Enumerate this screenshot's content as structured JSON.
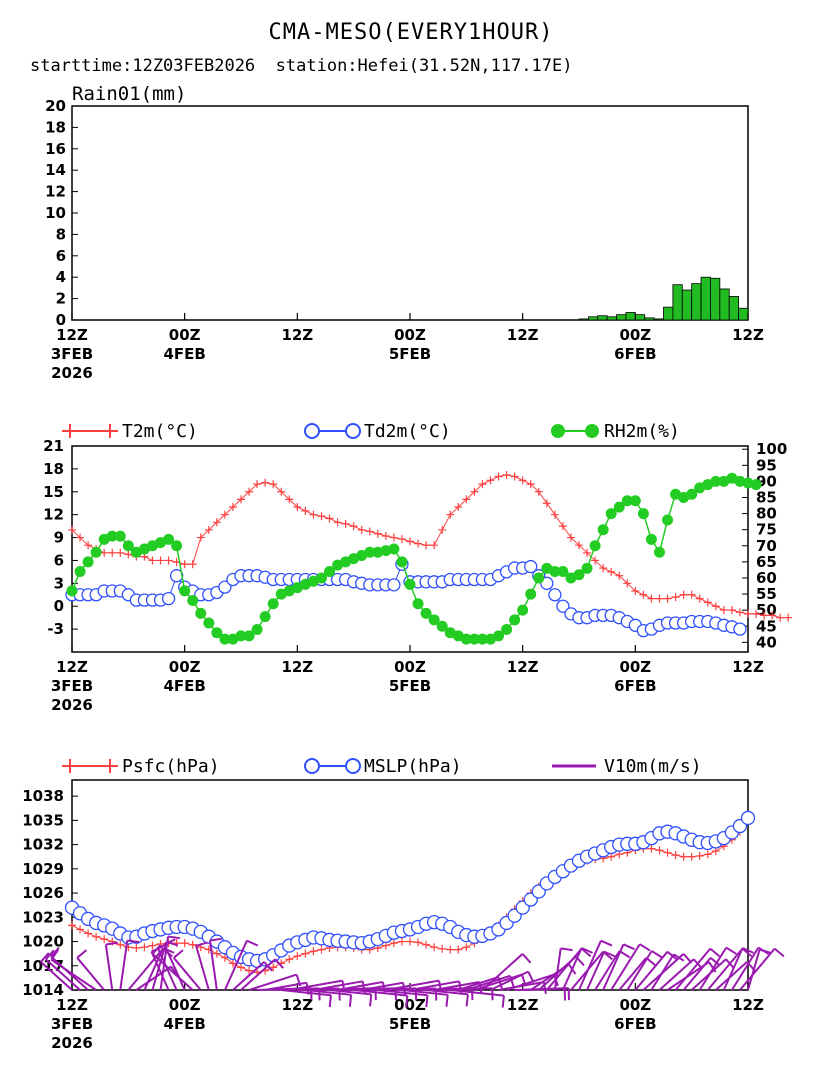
{
  "title": "CMA-MESO(EVERY1HOUR)",
  "subtitle_start": "starttime:12Z03FEB2026",
  "subtitle_station": "station:Hefei(31.52N,117.17E)",
  "colors": {
    "t2m": "#ff4040",
    "td2m": "#3050ff",
    "rh2m": "#22cc22",
    "psfc": "#ff4040",
    "mslp": "#3050ff",
    "wind": "#9a1ab0",
    "rain": "#22bb22"
  },
  "chart_data": [
    {
      "type": "bar",
      "title": "Rain01(mm)",
      "ylim": [
        0,
        20
      ],
      "yticks": [
        "20",
        "18",
        "16",
        "14",
        "12",
        "10",
        "8",
        "6",
        "4",
        "2",
        "0"
      ],
      "xlim": [
        0,
        72
      ],
      "xticks": [
        {
          "top": "12Z",
          "mid": "3FEB",
          "bot": "2026"
        },
        {
          "top": "00Z",
          "mid": "4FEB",
          "bot": ""
        },
        {
          "top": "12Z",
          "mid": "",
          "bot": ""
        },
        {
          "top": "00Z",
          "mid": "5FEB",
          "bot": ""
        },
        {
          "top": "12Z",
          "mid": "",
          "bot": ""
        },
        {
          "top": "00Z",
          "mid": "6FEB",
          "bot": ""
        },
        {
          "top": "12Z",
          "mid": "",
          "bot": ""
        }
      ],
      "x": [
        55,
        56,
        57,
        58,
        59,
        60,
        61,
        62,
        63,
        64,
        65,
        66,
        67,
        68,
        69,
        70,
        71,
        72
      ],
      "values": [
        0.1,
        0.3,
        0.4,
        0.3,
        0.5,
        0.7,
        0.5,
        0.2,
        0.1,
        1.2,
        3.3,
        2.8,
        3.4,
        4.0,
        3.9,
        2.9,
        2.2,
        1.1
      ]
    },
    {
      "type": "line",
      "legend": [
        "T2m(°C)",
        "Td2m(°C)",
        "RH2m(%)"
      ],
      "ylim_left": [
        -6,
        21
      ],
      "yticks_left": [
        "21",
        "18",
        "15",
        "12",
        "9",
        "6",
        "3",
        "0",
        "-3"
      ],
      "ylim_right": [
        37,
        101
      ],
      "yticks_right": [
        "100",
        "95",
        "90",
        "85",
        "80",
        "75",
        "70",
        "65",
        "60",
        "55",
        "50",
        "45",
        "40"
      ],
      "series": [
        {
          "name": "T2m",
          "values": [
            10,
            9,
            8,
            7.5,
            7,
            7,
            7,
            6.8,
            6.5,
            6.5,
            6,
            6,
            6,
            5.8,
            5.5,
            5.5,
            9,
            10,
            11,
            12,
            13,
            14,
            15,
            16,
            16.2,
            16,
            15,
            14,
            13,
            12.5,
            12,
            11.8,
            11.5,
            11,
            10.8,
            10.5,
            10,
            9.8,
            9.5,
            9.2,
            9,
            8.8,
            8.5,
            8.2,
            8,
            8,
            10,
            12,
            13,
            14,
            15,
            16,
            16.5,
            17,
            17.2,
            17,
            16.5,
            16,
            15,
            13.5,
            12,
            10.5,
            9,
            8,
            7,
            6,
            5,
            4.5,
            4,
            3,
            2,
            1.5,
            1,
            1,
            1,
            1.2,
            1.5,
            1.5,
            1,
            0.5,
            0,
            -0.5,
            -0.5,
            -0.8,
            -1,
            -1,
            -1.2,
            -1.2,
            -1.5,
            -1.5
          ]
        },
        {
          "name": "Td2m",
          "values": [
            1.5,
            1.5,
            1.5,
            1.5,
            2,
            2,
            2,
            1.5,
            0.8,
            0.8,
            0.8,
            0.8,
            1,
            4,
            2.5,
            2,
            1.5,
            1.5,
            1.8,
            2.5,
            3.5,
            4,
            4,
            4,
            3.8,
            3.5,
            3.5,
            3.5,
            3.5,
            3.5,
            3.5,
            3.5,
            3.5,
            3.5,
            3.5,
            3.2,
            3,
            2.8,
            2.8,
            2.8,
            2.8,
            5.5,
            3.2,
            3.2,
            3.2,
            3.2,
            3.2,
            3.5,
            3.5,
            3.5,
            3.5,
            3.5,
            3.5,
            4,
            4.5,
            5,
            5,
            5.2,
            4,
            3,
            1.5,
            0,
            -1,
            -1.5,
            -1.5,
            -1.2,
            -1.2,
            -1.2,
            -1.5,
            -2,
            -2.5,
            -3.2,
            -3,
            -2.5,
            -2.2,
            -2.2,
            -2.2,
            -2,
            -2,
            -2,
            -2.2,
            -2.5,
            -2.7,
            -3
          ]
        },
        {
          "name": "RH2m",
          "values": [
            56,
            62,
            65,
            68,
            72,
            73,
            73,
            70,
            68,
            69,
            70,
            71,
            72,
            70,
            56,
            53,
            49,
            46,
            43,
            41,
            41,
            42,
            42,
            44,
            48,
            52,
            55,
            56,
            57,
            58,
            59,
            60,
            62,
            64,
            65,
            66,
            67,
            68,
            68,
            68.5,
            69,
            65,
            58,
            52,
            49,
            47,
            45,
            43,
            42,
            41,
            41,
            41,
            41,
            42,
            44,
            47,
            50,
            55,
            60,
            63,
            62,
            62,
            60,
            61,
            63,
            70,
            75,
            80,
            82,
            84,
            84,
            80,
            72,
            68,
            78,
            86,
            85,
            86,
            88,
            89,
            90,
            90,
            91,
            90,
            89.5,
            89
          ]
        }
      ],
      "rh_x": [
        0,
        1,
        2,
        3,
        4,
        5,
        6,
        7,
        8,
        9,
        10,
        11,
        12,
        13,
        14,
        15,
        16,
        17,
        18,
        19,
        20,
        21,
        22,
        23,
        24,
        25,
        26,
        27,
        28,
        29,
        30,
        31,
        32,
        33,
        34,
        35,
        36,
        37,
        38,
        39,
        40,
        41,
        42,
        43,
        44,
        45,
        46,
        47,
        48,
        49,
        50,
        51,
        52,
        53,
        54,
        55,
        56,
        57,
        58,
        59,
        60,
        61,
        62,
        63,
        64,
        65,
        66,
        67,
        68,
        69,
        70,
        71,
        72,
        73,
        74,
        75,
        76,
        77,
        78,
        79,
        80,
        81,
        82,
        83,
        84,
        85
      ]
    },
    {
      "type": "line",
      "legend": [
        "Psfc(hPa)",
        "MSLP(hPa)",
        "V10m(m/s)"
      ],
      "ylim": [
        1014,
        1040
      ],
      "yticks": [
        "1038",
        "1035",
        "1032",
        "1029",
        "1026",
        "1023",
        "1020",
        "1017",
        "1014"
      ],
      "series": [
        {
          "name": "Psfc",
          "values": [
            1022,
            1021.5,
            1021,
            1020.6,
            1020.3,
            1020,
            1019.6,
            1019.3,
            1019.2,
            1019.3,
            1019.5,
            1019.7,
            1019.8,
            1019.8,
            1019.8,
            1019.6,
            1019.3,
            1019,
            1018.5,
            1018,
            1017.3,
            1016.8,
            1016.4,
            1016.2,
            1016.4,
            1016.8,
            1017.3,
            1017.8,
            1018.2,
            1018.5,
            1018.8,
            1019,
            1019.2,
            1019.3,
            1019.3,
            1019.2,
            1019,
            1019,
            1019.2,
            1019.5,
            1019.8,
            1020,
            1020,
            1019.9,
            1019.6,
            1019.3,
            1019.1,
            1019,
            1019,
            1019.3,
            1019.8,
            1020.5,
            1021.2,
            1022,
            1023,
            1024,
            1025,
            1026,
            1026.8,
            1027.5,
            1028.2,
            1028.8,
            1029.3,
            1029.7,
            1030,
            1030.2,
            1030.3,
            1030.5,
            1030.8,
            1031,
            1031.3,
            1031.5,
            1031.5,
            1031.3,
            1031,
            1030.7,
            1030.5,
            1030.5,
            1030.6,
            1030.8,
            1031.2,
            1031.8,
            1032.6,
            1033.6
          ]
        },
        {
          "name": "MSLP",
          "values": [
            1024.2,
            1023.5,
            1022.8,
            1022.3,
            1022,
            1021.6,
            1021,
            1020.5,
            1020.6,
            1021,
            1021.3,
            1021.5,
            1021.7,
            1021.8,
            1021.8,
            1021.6,
            1021.2,
            1020.6,
            1020,
            1019.3,
            1018.6,
            1018.1,
            1017.8,
            1017.6,
            1017.8,
            1018.3,
            1018.9,
            1019.5,
            1019.9,
            1020.2,
            1020.5,
            1020.4,
            1020.2,
            1020.1,
            1020,
            1019.9,
            1019.8,
            1020,
            1020.3,
            1020.7,
            1021.1,
            1021.3,
            1021.5,
            1021.8,
            1022.2,
            1022.4,
            1022.2,
            1021.8,
            1021.2,
            1020.8,
            1020.6,
            1020.7,
            1021,
            1021.5,
            1022.3,
            1023.2,
            1024.2,
            1025.2,
            1026.2,
            1027.2,
            1028,
            1028.7,
            1029.4,
            1030,
            1030.5,
            1030.9,
            1031.3,
            1031.7,
            1032,
            1032.1,
            1032.1,
            1032.3,
            1032.8,
            1033.4,
            1033.6,
            1033.4,
            1033,
            1032.6,
            1032.3,
            1032.2,
            1032.4,
            1032.8,
            1033.5,
            1034.3,
            1035.3
          ]
        },
        {
          "name": "V10m",
          "values": [
            -0.6,
            -0.7,
            -0.8,
            -0.7,
            -0.6,
            -0.3,
            0.1,
            0.4,
            0.5,
            0.3,
            0.1,
            -0.1,
            -0.3,
            -0.4,
            -0.5,
            -0.6,
            -0.6,
            -0.4,
            -0.1,
            0.2,
            0.4,
            0.6,
            0.8,
            0.9,
            1,
            1,
            1,
            1,
            1,
            1,
            1,
            1,
            1,
            1,
            1,
            1,
            1,
            1,
            1,
            1,
            1,
            1,
            1,
            1,
            1,
            1,
            1,
            1,
            0.9,
            0.8,
            0.7,
            0.6,
            0.7,
            0.8,
            0.9,
            1,
            0.9,
            0.7,
            0.5,
            0.3,
            0.1,
            0.2,
            0.3,
            0.3,
            0.2,
            0.2,
            0.3,
            0.3,
            0.3,
            0.4,
            0.4,
            0.4,
            0.4,
            0.5,
            0.5,
            0.5,
            0.4,
            0.4,
            0.4,
            0.4,
            0.4,
            0.3,
            0.3,
            0.3,
            0.2
          ]
        }
      ]
    }
  ]
}
